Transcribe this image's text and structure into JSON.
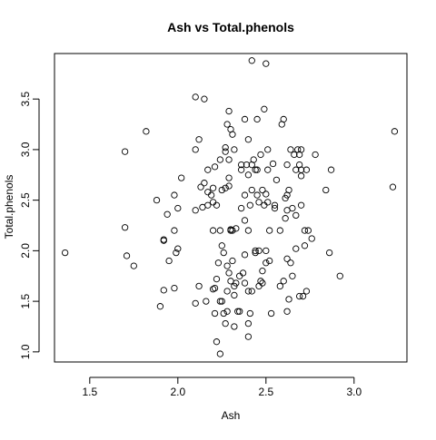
{
  "chart_data": {
    "type": "scatter",
    "title": "Ash vs Total.phenols",
    "xlabel": "Ash",
    "ylabel": "Total.phenols",
    "xlim": [
      1.3,
      3.3
    ],
    "ylim": [
      0.9,
      3.95
    ],
    "xticks": [
      1.5,
      2.0,
      2.5,
      3.0
    ],
    "yticks": [
      1.0,
      1.5,
      2.0,
      2.5,
      3.0,
      3.5
    ],
    "grid": false,
    "marker": "open-circle",
    "points": [
      [
        1.36,
        1.98
      ],
      [
        1.7,
        2.98
      ],
      [
        1.7,
        2.23
      ],
      [
        1.71,
        1.95
      ],
      [
        1.75,
        1.85
      ],
      [
        1.82,
        3.18
      ],
      [
        1.88,
        2.5
      ],
      [
        1.9,
        1.45
      ],
      [
        1.92,
        2.11
      ],
      [
        1.92,
        2.1
      ],
      [
        1.92,
        1.61
      ],
      [
        1.94,
        2.36
      ],
      [
        1.95,
        1.9
      ],
      [
        1.98,
        2.55
      ],
      [
        1.98,
        1.63
      ],
      [
        1.98,
        2.2
      ],
      [
        1.99,
        1.98
      ],
      [
        2.0,
        2.02
      ],
      [
        2.0,
        2.42
      ],
      [
        2.02,
        2.72
      ],
      [
        2.1,
        3.52
      ],
      [
        2.1,
        3.0
      ],
      [
        2.1,
        2.4
      ],
      [
        2.1,
        1.48
      ],
      [
        2.12,
        3.1
      ],
      [
        2.12,
        1.65
      ],
      [
        2.13,
        2.63
      ],
      [
        2.14,
        2.43
      ],
      [
        2.15,
        3.5
      ],
      [
        2.15,
        2.67
      ],
      [
        2.16,
        1.5
      ],
      [
        2.17,
        2.8
      ],
      [
        2.17,
        2.58
      ],
      [
        2.17,
        2.45
      ],
      [
        2.19,
        2.55
      ],
      [
        2.2,
        2.62
      ],
      [
        2.2,
        2.48
      ],
      [
        2.2,
        2.2
      ],
      [
        2.2,
        1.62
      ],
      [
        2.21,
        1.38
      ],
      [
        2.21,
        1.63
      ],
      [
        2.21,
        2.83
      ],
      [
        2.22,
        1.1
      ],
      [
        2.22,
        2.45
      ],
      [
        2.22,
        1.72
      ],
      [
        2.23,
        1.88
      ],
      [
        2.24,
        0.98
      ],
      [
        2.24,
        2.9
      ],
      [
        2.24,
        1.5
      ],
      [
        2.24,
        2.2
      ],
      [
        2.25,
        1.5
      ],
      [
        2.25,
        2.6
      ],
      [
        2.25,
        2.05
      ],
      [
        2.26,
        1.98
      ],
      [
        2.26,
        1.38
      ],
      [
        2.27,
        1.28
      ],
      [
        2.27,
        2.62
      ],
      [
        2.27,
        3.02
      ],
      [
        2.27,
        2.98
      ],
      [
        2.28,
        3.25
      ],
      [
        2.28,
        1.6
      ],
      [
        2.28,
        1.4
      ],
      [
        2.28,
        1.85
      ],
      [
        2.29,
        2.9
      ],
      [
        2.29,
        2.64
      ],
      [
        2.29,
        3.38
      ],
      [
        2.29,
        1.78
      ],
      [
        2.29,
        2.72
      ],
      [
        2.3,
        2.2
      ],
      [
        2.3,
        3.2
      ],
      [
        2.3,
        1.7
      ],
      [
        2.3,
        2.21
      ],
      [
        2.31,
        3.15
      ],
      [
        2.31,
        2.2
      ],
      [
        2.31,
        1.9
      ],
      [
        2.32,
        1.65
      ],
      [
        2.32,
        1.56
      ],
      [
        2.32,
        1.25
      ],
      [
        2.32,
        3.0
      ],
      [
        2.33,
        2.22
      ],
      [
        2.33,
        1.68
      ],
      [
        2.34,
        1.4
      ],
      [
        2.35,
        1.75
      ],
      [
        2.35,
        1.4
      ],
      [
        2.36,
        2.42
      ],
      [
        2.36,
        2.85
      ],
      [
        2.36,
        2.8
      ],
      [
        2.37,
        1.78
      ],
      [
        2.38,
        1.96
      ],
      [
        2.38,
        2.55
      ],
      [
        2.38,
        1.68
      ],
      [
        2.38,
        2.3
      ],
      [
        2.38,
        3.3
      ],
      [
        2.39,
        2.85
      ],
      [
        2.4,
        3.1
      ],
      [
        2.4,
        2.75
      ],
      [
        2.4,
        2.2
      ],
      [
        2.4,
        1.6
      ],
      [
        2.4,
        1.28
      ],
      [
        2.4,
        1.15
      ],
      [
        2.41,
        1.38
      ],
      [
        2.41,
        2.45
      ],
      [
        2.42,
        2.6
      ],
      [
        2.42,
        2.85
      ],
      [
        2.42,
        3.88
      ],
      [
        2.42,
        1.6
      ],
      [
        2.43,
        2.9
      ],
      [
        2.44,
        2.0
      ],
      [
        2.44,
        1.98
      ],
      [
        2.44,
        2.8
      ],
      [
        2.45,
        2.8
      ],
      [
        2.45,
        2.55
      ],
      [
        2.45,
        3.3
      ],
      [
        2.46,
        1.65
      ],
      [
        2.46,
        2.48
      ],
      [
        2.46,
        2.0
      ],
      [
        2.47,
        2.95
      ],
      [
        2.47,
        1.7
      ],
      [
        2.48,
        1.8
      ],
      [
        2.48,
        2.6
      ],
      [
        2.48,
        1.68
      ],
      [
        2.49,
        2.45
      ],
      [
        2.49,
        3.4
      ],
      [
        2.5,
        3.85
      ],
      [
        2.5,
        2.56
      ],
      [
        2.5,
        1.88
      ],
      [
        2.5,
        2.0
      ],
      [
        2.51,
        3.0
      ],
      [
        2.51,
        2.48
      ],
      [
        2.51,
        2.8
      ],
      [
        2.52,
        2.2
      ],
      [
        2.52,
        1.9
      ],
      [
        2.53,
        1.38
      ],
      [
        2.54,
        2.86
      ],
      [
        2.55,
        2.45
      ],
      [
        2.55,
        2.42
      ],
      [
        2.56,
        2.7
      ],
      [
        2.58,
        2.2
      ],
      [
        2.58,
        1.65
      ],
      [
        2.59,
        3.25
      ],
      [
        2.6,
        3.3
      ],
      [
        2.6,
        1.7
      ],
      [
        2.61,
        2.52
      ],
      [
        2.61,
        2.32
      ],
      [
        2.62,
        2.4
      ],
      [
        2.62,
        2.55
      ],
      [
        2.62,
        2.85
      ],
      [
        2.62,
        1.92
      ],
      [
        2.62,
        1.4
      ],
      [
        2.63,
        2.6
      ],
      [
        2.63,
        1.52
      ],
      [
        2.64,
        3.0
      ],
      [
        2.64,
        1.88
      ],
      [
        2.65,
        2.42
      ],
      [
        2.65,
        1.75
      ],
      [
        2.66,
        2.95
      ],
      [
        2.67,
        2.8
      ],
      [
        2.67,
        2.35
      ],
      [
        2.67,
        2.02
      ],
      [
        2.68,
        3.0
      ],
      [
        2.69,
        1.55
      ],
      [
        2.69,
        2.95
      ],
      [
        2.69,
        2.85
      ],
      [
        2.7,
        3.0
      ],
      [
        2.7,
        2.8
      ],
      [
        2.7,
        2.74
      ],
      [
        2.7,
        2.45
      ],
      [
        2.71,
        1.55
      ],
      [
        2.72,
        2.2
      ],
      [
        2.72,
        2.05
      ],
      [
        2.73,
        2.8
      ],
      [
        2.73,
        1.6
      ],
      [
        2.74,
        2.2
      ],
      [
        2.76,
        2.12
      ],
      [
        2.78,
        2.95
      ],
      [
        2.84,
        2.6
      ],
      [
        2.86,
        1.98
      ],
      [
        2.87,
        2.8
      ],
      [
        2.92,
        1.75
      ],
      [
        3.22,
        2.63
      ],
      [
        3.23,
        3.18
      ]
    ]
  }
}
